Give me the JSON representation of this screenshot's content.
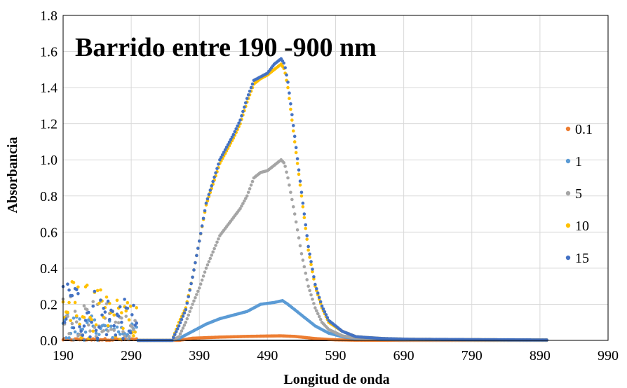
{
  "chart_data": {
    "type": "scatter",
    "title": "Barrido entre 190 -900 nm",
    "xlabel": "Longitud de onda",
    "ylabel": "Absorbancia",
    "xlim": [
      190,
      990
    ],
    "ylim": [
      0,
      1.8
    ],
    "xticks": [
      190,
      290,
      390,
      490,
      590,
      690,
      790,
      890,
      990
    ],
    "xtick_labels": [
      "190",
      "290",
      "390",
      "490",
      "590",
      "690",
      "790",
      "890",
      "990"
    ],
    "yticks": [
      0,
      0.2,
      0.4,
      0.6,
      0.8,
      1.0,
      1.2,
      1.4,
      1.6,
      1.8
    ],
    "ytick_labels": [
      "0.0",
      "0.2",
      "0.4",
      "0.6",
      "0.8",
      "1.0",
      "1.2",
      "1.4",
      "1.6",
      "1.8"
    ],
    "grid": true,
    "legend_position": "right",
    "x_range": [
      190,
      900
    ],
    "series": [
      {
        "name": "0.1",
        "color": "#ED7D31",
        "peak": 0.025,
        "points": [
          [
            190,
            0.01
          ],
          [
            300,
            0.0
          ],
          [
            360,
            0.0
          ],
          [
            380,
            0.012
          ],
          [
            420,
            0.018
          ],
          [
            460,
            0.022
          ],
          [
            490,
            0.024
          ],
          [
            510,
            0.025
          ],
          [
            530,
            0.022
          ],
          [
            560,
            0.01
          ],
          [
            590,
            0.003
          ],
          [
            620,
            0.001
          ],
          [
            700,
            0.0
          ],
          [
            800,
            0.0
          ],
          [
            900,
            0.0
          ]
        ]
      },
      {
        "name": "1",
        "color": "#5B9BD5",
        "peak": 0.22,
        "points": [
          [
            190,
            0.03
          ],
          [
            300,
            0.0
          ],
          [
            350,
            0.0
          ],
          [
            360,
            0.01
          ],
          [
            380,
            0.05
          ],
          [
            400,
            0.09
          ],
          [
            420,
            0.12
          ],
          [
            440,
            0.14
          ],
          [
            460,
            0.16
          ],
          [
            480,
            0.2
          ],
          [
            500,
            0.21
          ],
          [
            512,
            0.22
          ],
          [
            520,
            0.2
          ],
          [
            540,
            0.14
          ],
          [
            560,
            0.08
          ],
          [
            580,
            0.04
          ],
          [
            600,
            0.02
          ],
          [
            620,
            0.01
          ],
          [
            660,
            0.005
          ],
          [
            700,
            0.003
          ],
          [
            800,
            0.002
          ],
          [
            900,
            0.001
          ]
        ]
      },
      {
        "name": "5",
        "color": "#A5A5A5",
        "peak": 1.0,
        "points": [
          [
            190,
            0.05
          ],
          [
            300,
            0.0
          ],
          [
            350,
            0.0
          ],
          [
            360,
            0.02
          ],
          [
            370,
            0.1
          ],
          [
            380,
            0.2
          ],
          [
            390,
            0.29
          ],
          [
            400,
            0.4
          ],
          [
            420,
            0.58
          ],
          [
            440,
            0.68
          ],
          [
            450,
            0.73
          ],
          [
            460,
            0.8
          ],
          [
            470,
            0.9
          ],
          [
            480,
            0.93
          ],
          [
            490,
            0.94
          ],
          [
            500,
            0.97
          ],
          [
            510,
            1.0
          ],
          [
            515,
            0.98
          ],
          [
            520,
            0.9
          ],
          [
            530,
            0.7
          ],
          [
            540,
            0.48
          ],
          [
            550,
            0.3
          ],
          [
            560,
            0.18
          ],
          [
            570,
            0.1
          ],
          [
            580,
            0.06
          ],
          [
            600,
            0.025
          ],
          [
            620,
            0.012
          ],
          [
            660,
            0.005
          ],
          [
            700,
            0.003
          ],
          [
            800,
            0.002
          ],
          [
            900,
            0.001
          ]
        ]
      },
      {
        "name": "10",
        "color": "#FFC000",
        "peak": 1.53,
        "points": [
          [
            190,
            0.1
          ],
          [
            300,
            0.0
          ],
          [
            350,
            0.0
          ],
          [
            360,
            0.1
          ],
          [
            370,
            0.18
          ],
          [
            380,
            0.35
          ],
          [
            390,
            0.55
          ],
          [
            400,
            0.75
          ],
          [
            420,
            0.98
          ],
          [
            440,
            1.12
          ],
          [
            450,
            1.2
          ],
          [
            460,
            1.32
          ],
          [
            470,
            1.42
          ],
          [
            480,
            1.45
          ],
          [
            490,
            1.47
          ],
          [
            500,
            1.5
          ],
          [
            510,
            1.53
          ],
          [
            515,
            1.5
          ],
          [
            520,
            1.4
          ],
          [
            530,
            1.1
          ],
          [
            540,
            0.8
          ],
          [
            550,
            0.5
          ],
          [
            560,
            0.3
          ],
          [
            570,
            0.18
          ],
          [
            580,
            0.1
          ],
          [
            600,
            0.05
          ],
          [
            620,
            0.02
          ],
          [
            660,
            0.01
          ],
          [
            700,
            0.006
          ],
          [
            800,
            0.004
          ],
          [
            900,
            0.002
          ]
        ]
      },
      {
        "name": "15",
        "color": "#4472C4",
        "peak": 1.56,
        "points": [
          [
            190,
            0.1
          ],
          [
            300,
            0.0
          ],
          [
            350,
            0.0
          ],
          [
            360,
            0.08
          ],
          [
            370,
            0.17
          ],
          [
            380,
            0.35
          ],
          [
            390,
            0.55
          ],
          [
            400,
            0.76
          ],
          [
            420,
            1.0
          ],
          [
            440,
            1.14
          ],
          [
            450,
            1.22
          ],
          [
            460,
            1.34
          ],
          [
            470,
            1.44
          ],
          [
            480,
            1.46
          ],
          [
            490,
            1.48
          ],
          [
            500,
            1.53
          ],
          [
            510,
            1.56
          ],
          [
            515,
            1.53
          ],
          [
            520,
            1.43
          ],
          [
            530,
            1.13
          ],
          [
            540,
            0.82
          ],
          [
            550,
            0.52
          ],
          [
            560,
            0.31
          ],
          [
            570,
            0.19
          ],
          [
            580,
            0.11
          ],
          [
            600,
            0.05
          ],
          [
            620,
            0.02
          ],
          [
            660,
            0.01
          ],
          [
            700,
            0.006
          ],
          [
            800,
            0.004
          ],
          [
            900,
            0.002
          ]
        ]
      }
    ]
  }
}
